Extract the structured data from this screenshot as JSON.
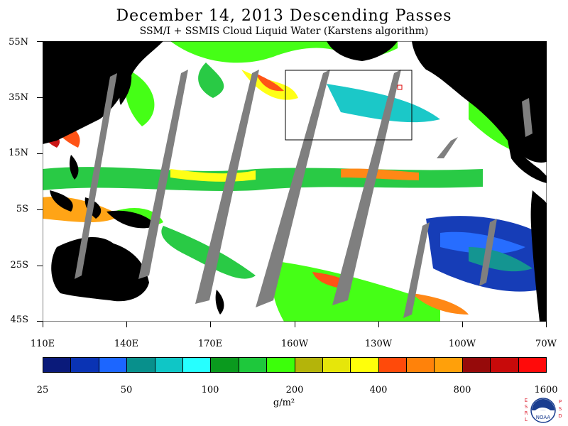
{
  "header": {
    "title": "December 14, 2013  Descending Passes",
    "subtitle": "SSM/I + SSMIS Cloud Liquid Water (Karstens algorithm)"
  },
  "map": {
    "lat_labels": [
      "55N",
      "35N",
      "15N",
      "5S",
      "25S",
      "45S"
    ],
    "lon_labels": [
      "110E",
      "140E",
      "170E",
      "160W",
      "130W",
      "100W",
      "70W"
    ],
    "region": "Pacific Ocean",
    "data_gap_color": "#7f7f7f",
    "land_color": "#000000",
    "no_cloud_color": "#ffffff"
  },
  "colorbar": {
    "colors": [
      "#0a1a7a",
      "#0a33b4",
      "#1c66ff",
      "#08908c",
      "#0fc6c6",
      "#26ffff",
      "#0a9a1e",
      "#1ec83c",
      "#3cff0a",
      "#b4b40a",
      "#e6e60a",
      "#ffff0a",
      "#ff4a0a",
      "#ff820a",
      "#ffa00a",
      "#960a0a",
      "#c80a0a",
      "#ff0a0a"
    ],
    "tick_labels": [
      "25",
      "50",
      "100",
      "200",
      "400",
      "800",
      "1600"
    ],
    "units_label": "g/m²"
  },
  "logo": {
    "left_letters": [
      "E",
      "S",
      "R",
      "L"
    ],
    "right_letters": [
      "P",
      "S",
      "D"
    ],
    "center_text": "NOAA"
  }
}
